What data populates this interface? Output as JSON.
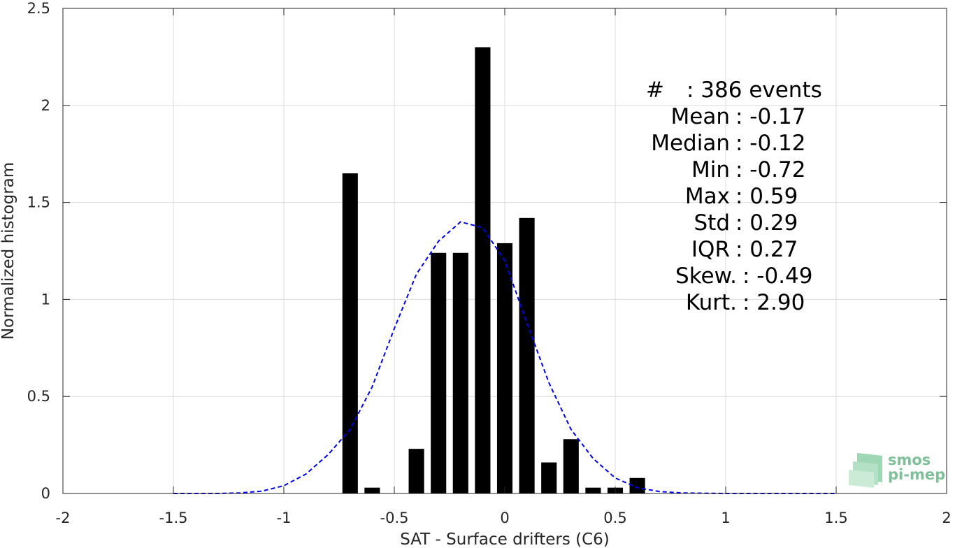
{
  "chart_data": {
    "type": "bar",
    "xlabel": "SAT - Surface drifters (C6)",
    "ylabel": "Normalized histogram",
    "xlim": [
      -2,
      2
    ],
    "ylim": [
      0,
      2.5
    ],
    "xticks": [
      -2,
      -1.5,
      -1,
      -0.5,
      0,
      0.5,
      1,
      1.5,
      2
    ],
    "xtick_labels": [
      "-2",
      "-1.5",
      "-1",
      "-0.5",
      "0",
      "0.5",
      "1",
      "1.5",
      "2"
    ],
    "yticks": [
      0,
      0.5,
      1,
      1.5,
      2,
      2.5
    ],
    "ytick_labels": [
      "0",
      "0.5",
      "1",
      "1.5",
      "2",
      "2.5"
    ],
    "grid": true,
    "bar_width": 0.07,
    "bar_color": "#000000",
    "bars": [
      {
        "x": -0.7,
        "value": 1.65
      },
      {
        "x": -0.6,
        "value": 0.03
      },
      {
        "x": -0.4,
        "value": 0.23
      },
      {
        "x": -0.3,
        "value": 1.24
      },
      {
        "x": -0.2,
        "value": 1.24
      },
      {
        "x": -0.1,
        "value": 2.3
      },
      {
        "x": 0.0,
        "value": 1.29
      },
      {
        "x": 0.1,
        "value": 1.42
      },
      {
        "x": 0.2,
        "value": 0.16
      },
      {
        "x": 0.3,
        "value": 0.28
      },
      {
        "x": 0.4,
        "value": 0.03
      },
      {
        "x": 0.5,
        "value": 0.03
      },
      {
        "x": 0.6,
        "value": 0.08
      }
    ],
    "fit_curve": {
      "style": "dashed",
      "color": "#0000e6",
      "x": [
        -1.5,
        -1.4,
        -1.3,
        -1.2,
        -1.1,
        -1.0,
        -0.9,
        -0.8,
        -0.7,
        -0.6,
        -0.5,
        -0.4,
        -0.3,
        -0.2,
        -0.1,
        0.0,
        0.1,
        0.2,
        0.3,
        0.4,
        0.5,
        0.6,
        0.7,
        0.8,
        0.9,
        1.0,
        1.1,
        1.2,
        1.3,
        1.4,
        1.5
      ],
      "y": [
        0.0,
        0.0,
        0.0,
        0.003,
        0.012,
        0.04,
        0.1,
        0.2,
        0.33,
        0.55,
        0.85,
        1.13,
        1.3,
        1.4,
        1.37,
        1.2,
        0.88,
        0.57,
        0.33,
        0.18,
        0.08,
        0.03,
        0.01,
        0.003,
        0.001,
        0.0,
        0.0,
        0.0,
        0.0,
        0.0,
        0.0
      ]
    },
    "stats": [
      "#  : 386 events",
      "Mean : -0.17",
      "Median : -0.12",
      "Min : -0.72",
      "Max : 0.59",
      "Std : 0.29",
      "IQR : 0.27",
      "Skew. : -0.49",
      "Kurt. : 2.90"
    ]
  },
  "logo": {
    "line1": "smos",
    "line2": "pi-mep",
    "color": "#7fbf99"
  }
}
